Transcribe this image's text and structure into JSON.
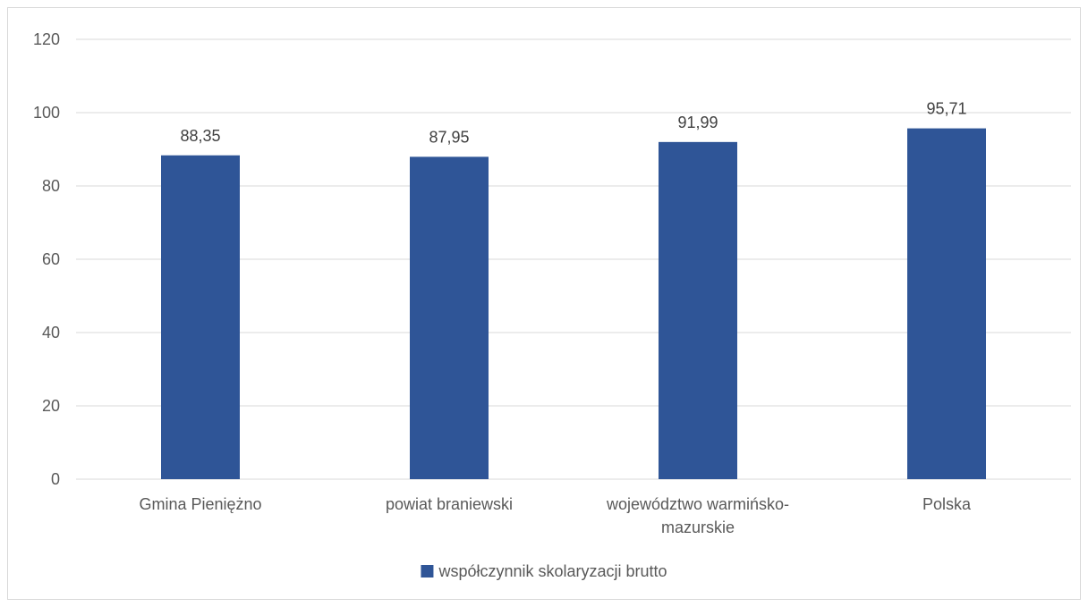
{
  "chart_data": {
    "type": "bar",
    "categories": [
      "Gmina Pieniężno",
      "powiat braniewski",
      "województwo warmińsko-mazurskie",
      "Polska"
    ],
    "category_label_lines": [
      [
        "Gmina Pieniężno"
      ],
      [
        "powiat braniewski"
      ],
      [
        "województwo warmińsko-",
        "mazurskie"
      ],
      [
        "Polska"
      ]
    ],
    "series": [
      {
        "name": "współczynnik skolaryzacji brutto",
        "values": [
          88.35,
          87.95,
          91.99,
          95.71
        ],
        "color": "#2f5597"
      }
    ],
    "data_labels": [
      "88,35",
      "87,95",
      "91,99",
      "95,71"
    ],
    "yticks": [
      0,
      20,
      40,
      60,
      80,
      100,
      120
    ],
    "ylim": [
      0,
      120
    ],
    "grid": true,
    "legend_position": "bottom",
    "gridline_color": "#d9d9d9"
  }
}
